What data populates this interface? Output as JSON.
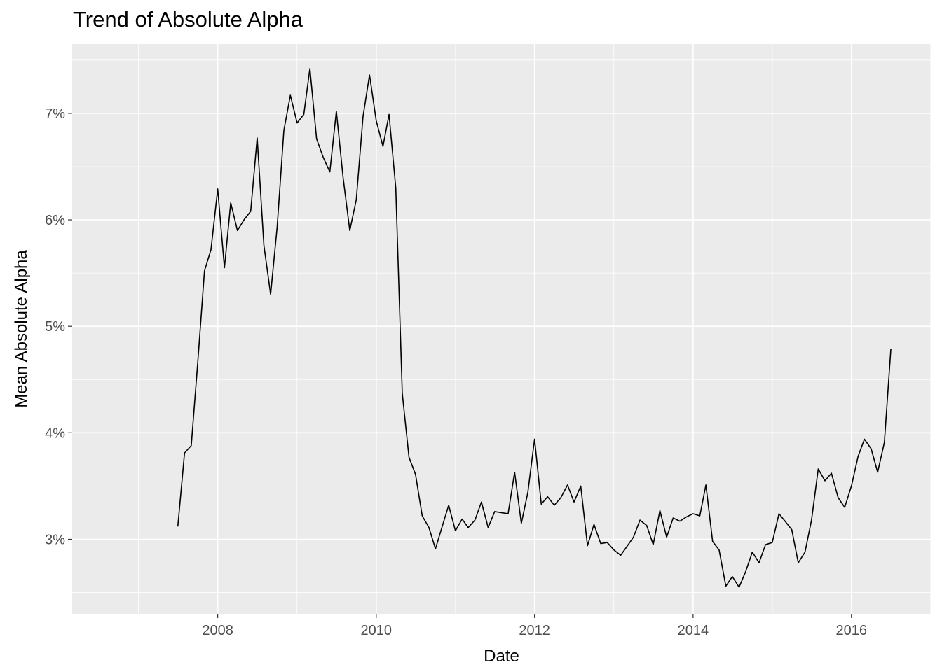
{
  "chart_data": {
    "type": "line",
    "title": "Trend of Absolute Alpha",
    "xlabel": "Date",
    "ylabel": "Mean Absolute Alpha",
    "xlim": [
      "2006-03-01",
      "2017-01-01"
    ],
    "ylim": [
      2.3,
      7.65
    ],
    "x_ticks": [
      {
        "value": "2008-01-01",
        "label": "2008"
      },
      {
        "value": "2010-01-01",
        "label": "2010"
      },
      {
        "value": "2012-01-01",
        "label": "2012"
      },
      {
        "value": "2014-01-01",
        "label": "2014"
      },
      {
        "value": "2016-01-01",
        "label": "2016"
      }
    ],
    "y_ticks": [
      {
        "value": 3,
        "label": "3%"
      },
      {
        "value": 4,
        "label": "4%"
      },
      {
        "value": 5,
        "label": "5%"
      },
      {
        "value": 6,
        "label": "6%"
      },
      {
        "value": 7,
        "label": "7%"
      }
    ],
    "grid": true,
    "panel_background": "#ebebeb",
    "grid_color": "#ffffff",
    "line_color": "#000000",
    "series": [
      {
        "x": [
          "2007-07-01",
          "2007-08-01",
          "2007-09-01",
          "2007-10-01",
          "2007-11-01",
          "2007-12-01",
          "2008-01-01",
          "2008-02-01",
          "2008-03-01",
          "2008-04-01",
          "2008-05-01",
          "2008-06-01",
          "2008-07-01",
          "2008-08-01",
          "2008-09-01",
          "2008-10-01",
          "2008-11-01",
          "2008-12-01",
          "2009-01-01",
          "2009-02-01",
          "2009-03-01",
          "2009-04-01",
          "2009-05-01",
          "2009-06-01",
          "2009-07-01",
          "2009-08-01",
          "2009-09-01",
          "2009-10-01",
          "2009-11-01",
          "2009-12-01",
          "2010-01-01",
          "2010-02-01",
          "2010-03-01",
          "2010-04-01",
          "2010-05-01",
          "2010-06-01",
          "2010-07-01",
          "2010-08-01",
          "2010-09-01",
          "2010-10-01",
          "2010-11-01",
          "2010-12-01",
          "2011-01-01",
          "2011-02-01",
          "2011-03-01",
          "2011-04-01",
          "2011-05-01",
          "2011-06-01",
          "2011-07-01",
          "2011-08-01",
          "2011-09-01",
          "2011-10-01",
          "2011-11-01",
          "2011-12-01",
          "2012-01-01",
          "2012-02-01",
          "2012-03-01",
          "2012-04-01",
          "2012-05-01",
          "2012-06-01",
          "2012-07-01",
          "2012-08-01",
          "2012-09-01",
          "2012-10-01",
          "2012-11-01",
          "2012-12-01",
          "2013-01-01",
          "2013-02-01",
          "2013-03-01",
          "2013-04-01",
          "2013-05-01",
          "2013-06-01",
          "2013-07-01",
          "2013-08-01",
          "2013-09-01",
          "2013-10-01",
          "2013-11-01",
          "2013-12-01",
          "2014-01-01",
          "2014-02-01",
          "2014-03-01",
          "2014-04-01",
          "2014-05-01",
          "2014-06-01",
          "2014-07-01",
          "2014-08-01",
          "2014-09-01",
          "2014-10-01",
          "2014-11-01",
          "2014-12-01",
          "2015-01-01",
          "2015-02-01",
          "2015-03-01",
          "2015-04-01",
          "2015-05-01",
          "2015-06-01",
          "2015-07-01",
          "2015-08-01",
          "2015-09-01",
          "2015-10-01",
          "2015-11-01",
          "2015-12-01",
          "2016-01-01",
          "2016-02-01",
          "2016-03-01",
          "2016-04-01",
          "2016-05-01",
          "2016-06-01",
          "2016-07-01"
        ],
        "y": [
          3.12,
          3.81,
          3.88,
          4.66,
          5.52,
          5.72,
          6.29,
          5.55,
          6.16,
          5.9,
          6.0,
          6.08,
          6.77,
          5.76,
          5.3,
          5.93,
          6.84,
          7.17,
          6.91,
          6.99,
          7.42,
          6.76,
          6.59,
          6.45,
          7.02,
          6.4,
          5.9,
          6.19,
          6.97,
          7.36,
          6.93,
          6.69,
          6.99,
          6.3,
          4.37,
          3.77,
          3.61,
          3.22,
          3.11,
          2.91,
          3.12,
          3.32,
          3.08,
          3.19,
          3.11,
          3.18,
          3.35,
          3.11,
          3.26,
          3.25,
          3.24,
          3.63,
          3.15,
          3.44,
          3.94,
          3.33,
          3.4,
          3.32,
          3.39,
          3.51,
          3.35,
          3.5,
          2.94,
          3.14,
          2.96,
          2.97,
          2.9,
          2.85,
          2.93,
          3.02,
          3.18,
          3.13,
          2.95,
          3.27,
          3.02,
          3.2,
          3.17,
          3.21,
          3.24,
          3.22,
          3.51,
          2.98,
          2.9,
          2.56,
          2.65,
          2.55,
          2.7,
          2.88,
          2.78,
          2.95,
          2.97,
          3.24,
          3.17,
          3.09,
          2.78,
          2.88,
          3.18,
          3.66,
          3.55,
          3.62,
          3.39,
          3.3,
          3.5,
          3.78,
          3.94,
          3.85,
          3.63,
          3.91,
          4.79
        ]
      }
    ]
  }
}
